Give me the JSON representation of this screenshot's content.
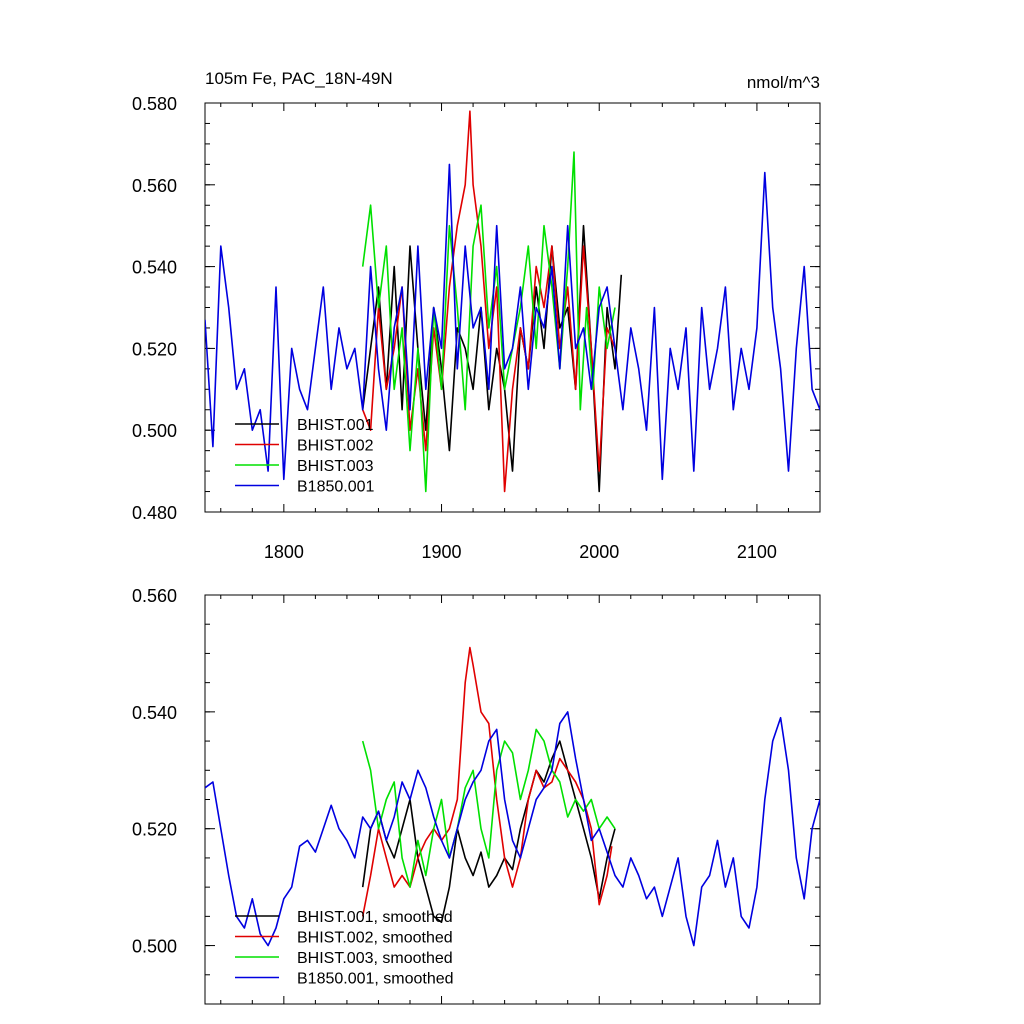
{
  "chart_data": [
    {
      "type": "line",
      "title": "105m Fe, PAC_18N-49N",
      "units": "nmol/m^3",
      "xlim": [
        1750,
        2140
      ],
      "ylim": [
        0.48,
        0.58
      ],
      "x_ticks": [
        1800,
        1900,
        2000,
        2100
      ],
      "x_tick_labels": [
        "1800",
        "1900",
        "2000",
        "2100"
      ],
      "y_ticks": [
        0.48,
        0.5,
        0.52,
        0.54,
        0.56,
        0.58
      ],
      "y_tick_labels": [
        "0.480",
        "0.500",
        "0.520",
        "0.540",
        "0.560",
        "0.580"
      ],
      "legend_position": "bottom-left",
      "series": [
        {
          "name": "BHIST.001",
          "color": "#000000",
          "x": [
            1850,
            1855,
            1860,
            1865,
            1870,
            1875,
            1880,
            1885,
            1890,
            1895,
            1900,
            1905,
            1910,
            1915,
            1920,
            1925,
            1930,
            1935,
            1940,
            1945,
            1950,
            1955,
            1960,
            1965,
            1970,
            1975,
            1980,
            1985,
            1990,
            1995,
            2000,
            2005,
            2010,
            2014
          ],
          "y": [
            0.505,
            0.52,
            0.535,
            0.51,
            0.54,
            0.505,
            0.545,
            0.52,
            0.5,
            0.53,
            0.515,
            0.495,
            0.525,
            0.52,
            0.51,
            0.53,
            0.505,
            0.52,
            0.51,
            0.49,
            0.525,
            0.515,
            0.535,
            0.52,
            0.545,
            0.525,
            0.53,
            0.51,
            0.55,
            0.52,
            0.485,
            0.53,
            0.515,
            0.538
          ]
        },
        {
          "name": "BHIST.002",
          "color": "#e00000",
          "x": [
            1850,
            1855,
            1860,
            1865,
            1870,
            1875,
            1880,
            1885,
            1890,
            1895,
            1900,
            1905,
            1910,
            1915,
            1918,
            1920,
            1925,
            1930,
            1935,
            1940,
            1945,
            1950,
            1955,
            1960,
            1965,
            1970,
            1975,
            1980,
            1985,
            1990,
            1995,
            2000,
            2005,
            2010
          ],
          "y": [
            0.505,
            0.5,
            0.53,
            0.51,
            0.52,
            0.535,
            0.5,
            0.515,
            0.495,
            0.525,
            0.51,
            0.535,
            0.55,
            0.56,
            0.578,
            0.56,
            0.545,
            0.52,
            0.535,
            0.485,
            0.51,
            0.525,
            0.515,
            0.54,
            0.53,
            0.545,
            0.52,
            0.535,
            0.51,
            0.545,
            0.52,
            0.49,
            0.525,
            0.52
          ]
        },
        {
          "name": "BHIST.003",
          "color": "#00e000",
          "x": [
            1850,
            1855,
            1860,
            1865,
            1870,
            1875,
            1880,
            1885,
            1890,
            1895,
            1900,
            1905,
            1910,
            1915,
            1920,
            1925,
            1930,
            1935,
            1940,
            1945,
            1950,
            1955,
            1960,
            1965,
            1970,
            1975,
            1980,
            1984,
            1988,
            1992,
            1996,
            2000,
            2005,
            2010
          ],
          "y": [
            0.54,
            0.555,
            0.53,
            0.545,
            0.51,
            0.525,
            0.495,
            0.52,
            0.485,
            0.53,
            0.51,
            0.55,
            0.53,
            0.505,
            0.545,
            0.555,
            0.525,
            0.54,
            0.51,
            0.52,
            0.53,
            0.545,
            0.52,
            0.55,
            0.535,
            0.515,
            0.54,
            0.568,
            0.505,
            0.53,
            0.51,
            0.535,
            0.52,
            0.53
          ]
        },
        {
          "name": "B1850.001",
          "color": "#0000e0",
          "x": [
            1750,
            1755,
            1760,
            1765,
            1770,
            1775,
            1780,
            1785,
            1790,
            1795,
            1800,
            1805,
            1810,
            1815,
            1820,
            1825,
            1830,
            1835,
            1840,
            1845,
            1850,
            1855,
            1860,
            1865,
            1870,
            1875,
            1880,
            1885,
            1890,
            1895,
            1900,
            1905,
            1910,
            1915,
            1920,
            1925,
            1930,
            1935,
            1940,
            1945,
            1950,
            1955,
            1960,
            1965,
            1970,
            1975,
            1980,
            1985,
            1990,
            1995,
            2000,
            2005,
            2010,
            2015,
            2020,
            2025,
            2030,
            2035,
            2040,
            2045,
            2050,
            2055,
            2060,
            2065,
            2070,
            2075,
            2080,
            2085,
            2090,
            2095,
            2100,
            2105,
            2110,
            2115,
            2120,
            2125,
            2130,
            2135,
            2140
          ],
          "y": [
            0.527,
            0.496,
            0.545,
            0.53,
            0.51,
            0.515,
            0.5,
            0.505,
            0.49,
            0.535,
            0.488,
            0.52,
            0.51,
            0.505,
            0.52,
            0.535,
            0.51,
            0.525,
            0.515,
            0.52,
            0.505,
            0.54,
            0.515,
            0.5,
            0.525,
            0.535,
            0.505,
            0.545,
            0.51,
            0.53,
            0.52,
            0.565,
            0.515,
            0.545,
            0.525,
            0.53,
            0.51,
            0.55,
            0.515,
            0.52,
            0.535,
            0.51,
            0.53,
            0.525,
            0.54,
            0.515,
            0.55,
            0.52,
            0.525,
            0.51,
            0.53,
            0.535,
            0.52,
            0.505,
            0.525,
            0.515,
            0.5,
            0.53,
            0.488,
            0.52,
            0.51,
            0.525,
            0.49,
            0.53,
            0.51,
            0.52,
            0.535,
            0.505,
            0.52,
            0.51,
            0.525,
            0.563,
            0.53,
            0.515,
            0.49,
            0.52,
            0.54,
            0.51,
            0.505
          ]
        }
      ]
    },
    {
      "type": "line",
      "xlim": [
        1750,
        2140
      ],
      "ylim": [
        0.49,
        0.56
      ],
      "x_ticks": [
        1800,
        1900,
        2000,
        2100
      ],
      "y_ticks": [
        0.5,
        0.52,
        0.54,
        0.56
      ],
      "y_tick_labels": [
        "0.500",
        "0.520",
        "0.540",
        "0.560"
      ],
      "legend_position": "bottom-left",
      "series": [
        {
          "name": "BHIST.001, smoothed",
          "color": "#000000",
          "x": [
            1850,
            1855,
            1860,
            1865,
            1870,
            1875,
            1880,
            1885,
            1890,
            1895,
            1900,
            1905,
            1910,
            1915,
            1920,
            1925,
            1930,
            1935,
            1940,
            1945,
            1950,
            1955,
            1960,
            1965,
            1970,
            1975,
            1980,
            1985,
            1990,
            1995,
            2000,
            2005,
            2010
          ],
          "y": [
            0.51,
            0.52,
            0.523,
            0.518,
            0.515,
            0.52,
            0.525,
            0.515,
            0.51,
            0.505,
            0.504,
            0.51,
            0.52,
            0.515,
            0.512,
            0.516,
            0.51,
            0.512,
            0.515,
            0.513,
            0.52,
            0.525,
            0.53,
            0.528,
            0.532,
            0.535,
            0.53,
            0.525,
            0.52,
            0.515,
            0.508,
            0.515,
            0.52
          ]
        },
        {
          "name": "BHIST.002, smoothed",
          "color": "#e00000",
          "x": [
            1850,
            1855,
            1860,
            1865,
            1870,
            1875,
            1880,
            1885,
            1890,
            1895,
            1900,
            1905,
            1910,
            1915,
            1918,
            1920,
            1925,
            1930,
            1935,
            1940,
            1945,
            1950,
            1955,
            1960,
            1965,
            1970,
            1975,
            1980,
            1985,
            1990,
            1995,
            2000,
            2005,
            2008
          ],
          "y": [
            0.505,
            0.512,
            0.52,
            0.515,
            0.51,
            0.512,
            0.51,
            0.515,
            0.518,
            0.52,
            0.518,
            0.52,
            0.525,
            0.545,
            0.551,
            0.548,
            0.54,
            0.538,
            0.525,
            0.515,
            0.51,
            0.515,
            0.525,
            0.53,
            0.527,
            0.528,
            0.532,
            0.53,
            0.528,
            0.525,
            0.52,
            0.507,
            0.512,
            0.517
          ]
        },
        {
          "name": "BHIST.003, smoothed",
          "color": "#00e000",
          "x": [
            1850,
            1855,
            1860,
            1865,
            1870,
            1875,
            1880,
            1885,
            1890,
            1895,
            1900,
            1905,
            1910,
            1915,
            1920,
            1925,
            1930,
            1935,
            1940,
            1945,
            1950,
            1955,
            1960,
            1965,
            1970,
            1975,
            1980,
            1985,
            1990,
            1995,
            2000,
            2005,
            2010
          ],
          "y": [
            0.535,
            0.53,
            0.52,
            0.525,
            0.528,
            0.515,
            0.51,
            0.518,
            0.512,
            0.52,
            0.525,
            0.515,
            0.52,
            0.527,
            0.53,
            0.52,
            0.515,
            0.53,
            0.535,
            0.533,
            0.525,
            0.53,
            0.537,
            0.535,
            0.53,
            0.528,
            0.522,
            0.525,
            0.523,
            0.525,
            0.52,
            0.522,
            0.52
          ]
        },
        {
          "name": "B1850.001, smoothed",
          "color": "#0000e0",
          "x": [
            1750,
            1755,
            1760,
            1765,
            1770,
            1775,
            1780,
            1785,
            1790,
            1795,
            1800,
            1805,
            1810,
            1815,
            1820,
            1825,
            1830,
            1835,
            1840,
            1845,
            1850,
            1855,
            1860,
            1865,
            1870,
            1875,
            1880,
            1885,
            1890,
            1895,
            1900,
            1905,
            1910,
            1915,
            1920,
            1925,
            1930,
            1935,
            1940,
            1945,
            1950,
            1955,
            1960,
            1965,
            1970,
            1975,
            1980,
            1985,
            1990,
            1995,
            2000,
            2005,
            2010,
            2015,
            2020,
            2025,
            2030,
            2035,
            2040,
            2045,
            2050,
            2055,
            2060,
            2065,
            2070,
            2075,
            2080,
            2085,
            2090,
            2095,
            2100,
            2105,
            2110,
            2115,
            2120,
            2125,
            2130,
            2135,
            2140
          ],
          "y": [
            0.527,
            0.528,
            0.52,
            0.512,
            0.505,
            0.503,
            0.508,
            0.502,
            0.5,
            0.503,
            0.508,
            0.51,
            0.517,
            0.518,
            0.516,
            0.52,
            0.524,
            0.52,
            0.518,
            0.515,
            0.522,
            0.52,
            0.523,
            0.518,
            0.522,
            0.528,
            0.525,
            0.53,
            0.527,
            0.522,
            0.518,
            0.515,
            0.52,
            0.525,
            0.528,
            0.53,
            0.535,
            0.537,
            0.525,
            0.518,
            0.515,
            0.52,
            0.525,
            0.527,
            0.53,
            0.538,
            0.54,
            0.532,
            0.525,
            0.518,
            0.52,
            0.516,
            0.512,
            0.51,
            0.515,
            0.512,
            0.508,
            0.51,
            0.505,
            0.51,
            0.515,
            0.505,
            0.5,
            0.51,
            0.512,
            0.518,
            0.51,
            0.515,
            0.505,
            0.503,
            0.51,
            0.525,
            0.535,
            0.539,
            0.53,
            0.515,
            0.508,
            0.52,
            0.525
          ]
        }
      ]
    }
  ]
}
